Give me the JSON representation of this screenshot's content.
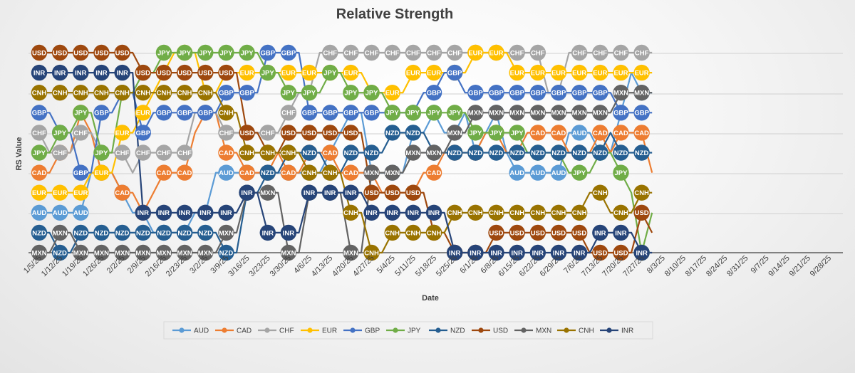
{
  "chart_data": {
    "type": "line",
    "title": "Relative Strength",
    "xlabel": "Date",
    "ylabel": "RS Value",
    "ylim": [
      1,
      11
    ],
    "grid": true,
    "legend_position": "bottom",
    "x_ticks": [
      "1/5/25",
      "1/12/25",
      "1/19/25",
      "1/26/25",
      "2/2/25",
      "2/9/25",
      "2/16/25",
      "2/23/25",
      "3/2/25",
      "3/9/25",
      "3/16/25",
      "3/23/25",
      "3/30/25",
      "4/6/25",
      "4/13/25",
      "4/20/25",
      "4/27/25",
      "5/4/25",
      "5/11/25",
      "5/18/25",
      "5/25/25",
      "6/1/25",
      "6/8/25",
      "6/15/25",
      "6/22/25",
      "6/29/25",
      "7/6/25",
      "7/13/25",
      "7/20/25",
      "7/27/25",
      "8/3/25",
      "8/10/25",
      "8/17/25",
      "8/24/25",
      "8/31/25",
      "9/7/25",
      "9/14/25",
      "9/21/25",
      "9/28/25"
    ],
    "points_per_week": 2,
    "series": [
      {
        "name": "AUD",
        "color": "#5b9bd5",
        "values": [
          3,
          3,
          3,
          3,
          3,
          5,
          5,
          5,
          4,
          3,
          3,
          2,
          2,
          2,
          2,
          3,
          3,
          5,
          5,
          5,
          5,
          5,
          5,
          5,
          5,
          5,
          5,
          5,
          6,
          7,
          8,
          8,
          5,
          5,
          5,
          5,
          7,
          7,
          8,
          7,
          7,
          8,
          6,
          7,
          8,
          6,
          5,
          5,
          5,
          5,
          5,
          7,
          7,
          7,
          6,
          6,
          8,
          10,
          9,
          9
        ]
      },
      {
        "name": "CAD",
        "color": "#ed7d31",
        "values": [
          5,
          5,
          6,
          6,
          8,
          7,
          5,
          5,
          4,
          4,
          3,
          4,
          5,
          5,
          5,
          7,
          8,
          8,
          6,
          6,
          5,
          5,
          5,
          6,
          5,
          5,
          6,
          6,
          6,
          5,
          5,
          5,
          5,
          4,
          4,
          4,
          4,
          5,
          5,
          6,
          6,
          6,
          6,
          7,
          7,
          6,
          6,
          7,
          7,
          7,
          7,
          6,
          6,
          6,
          7,
          6,
          7,
          7,
          7,
          5
        ]
      },
      {
        "name": "CHF",
        "color": "#a5a5a5",
        "values": [
          7,
          6,
          6,
          6,
          7,
          7,
          6,
          6,
          6,
          5,
          6,
          6,
          6,
          6,
          6,
          8,
          8,
          8,
          7,
          7,
          7,
          7,
          7,
          7,
          8,
          9,
          9,
          11,
          11,
          11,
          11,
          11,
          11,
          11,
          11,
          11,
          11,
          11,
          11,
          11,
          11,
          11,
          11,
          11,
          11,
          11,
          11,
          11,
          11,
          9,
          9,
          11,
          11,
          11,
          11,
          11,
          11,
          11,
          11,
          11
        ]
      },
      {
        "name": "EUR",
        "color": "#ffc000",
        "values": [
          4,
          4,
          4,
          4,
          4,
          5,
          5,
          5,
          7,
          7,
          8,
          9,
          10,
          11,
          11,
          11,
          9,
          9,
          10,
          10,
          10,
          10,
          10,
          10,
          10,
          10,
          10,
          10,
          10,
          10,
          10,
          10,
          9,
          9,
          9,
          9,
          10,
          10,
          10,
          10,
          10,
          10,
          11,
          11,
          11,
          11,
          10,
          10,
          10,
          10,
          10,
          10,
          10,
          10,
          10,
          10,
          10,
          10,
          10,
          10
        ]
      },
      {
        "name": "GBP",
        "color": "#4472c4",
        "values": [
          8,
          8,
          7,
          7,
          5,
          5,
          8,
          8,
          9,
          9,
          7,
          8,
          8,
          8,
          8,
          8,
          8,
          8,
          9,
          9,
          9,
          9,
          11,
          11,
          11,
          11,
          8,
          8,
          8,
          8,
          8,
          8,
          8,
          8,
          8,
          8,
          8,
          9,
          9,
          10,
          10,
          9,
          9,
          9,
          9,
          9,
          9,
          9,
          9,
          9,
          9,
          9,
          9,
          9,
          9,
          9,
          8,
          8,
          8,
          8
        ]
      },
      {
        "name": "JPY",
        "color": "#70ad47",
        "values": [
          6,
          6,
          7,
          7,
          8,
          8,
          6,
          6,
          9,
          9,
          10,
          10,
          11,
          11,
          11,
          11,
          11,
          11,
          11,
          11,
          11,
          11,
          10,
          10,
          9,
          9,
          9,
          9,
          10,
          10,
          9,
          9,
          9,
          9,
          8,
          8,
          8,
          8,
          8,
          8,
          8,
          8,
          7,
          7,
          7,
          7,
          7,
          6,
          6,
          6,
          6,
          5,
          5,
          5,
          6,
          6,
          5,
          4,
          1,
          3
        ]
      },
      {
        "name": "NZD",
        "color": "#255e91",
        "values": [
          2,
          2,
          1,
          1,
          2,
          2,
          2,
          2,
          2,
          2,
          2,
          2,
          2,
          2,
          2,
          2,
          2,
          2,
          1,
          1,
          4,
          4,
          5,
          5,
          6,
          6,
          6,
          6,
          5,
          5,
          6,
          6,
          6,
          6,
          7,
          7,
          7,
          7,
          6,
          6,
          6,
          6,
          6,
          6,
          6,
          6,
          6,
          6,
          6,
          6,
          6,
          6,
          6,
          6,
          6,
          7,
          6,
          6,
          6,
          6
        ]
      },
      {
        "name": "USD",
        "color": "#9e480e",
        "values": [
          11,
          11,
          11,
          11,
          11,
          11,
          11,
          11,
          11,
          11,
          10,
          10,
          10,
          10,
          10,
          10,
          10,
          10,
          10,
          10,
          7,
          7,
          6,
          6,
          7,
          7,
          7,
          7,
          7,
          7,
          7,
          7,
          4,
          4,
          4,
          4,
          4,
          4,
          2,
          2,
          1,
          1,
          1,
          1,
          2,
          2,
          2,
          2,
          2,
          2,
          2,
          2,
          2,
          1,
          1,
          1,
          1,
          1,
          3,
          2
        ]
      },
      {
        "name": "MXN",
        "color": "#636363",
        "values": [
          1,
          1,
          2,
          2,
          1,
          1,
          1,
          1,
          1,
          1,
          1,
          1,
          1,
          1,
          1,
          1,
          1,
          1,
          2,
          2,
          4,
          4,
          4,
          4,
          1,
          1,
          4,
          4,
          4,
          4,
          1,
          1,
          5,
          5,
          5,
          5,
          6,
          6,
          6,
          6,
          7,
          7,
          8,
          8,
          8,
          8,
          8,
          8,
          8,
          8,
          8,
          8,
          8,
          8,
          8,
          8,
          9,
          9,
          9,
          9
        ]
      },
      {
        "name": "CNH",
        "color": "#997300",
        "values": [
          9,
          9,
          9,
          9,
          9,
          9,
          9,
          9,
          9,
          9,
          9,
          9,
          9,
          9,
          9,
          9,
          9,
          9,
          8,
          8,
          6,
          6,
          6,
          6,
          6,
          6,
          5,
          5,
          5,
          5,
          3,
          3,
          1,
          1,
          2,
          2,
          2,
          2,
          2,
          2,
          3,
          3,
          3,
          3,
          3,
          3,
          3,
          3,
          3,
          3,
          3,
          3,
          3,
          4,
          4,
          3,
          3,
          3,
          4,
          4
        ]
      },
      {
        "name": "INR",
        "color": "#264478",
        "values": [
          10,
          10,
          10,
          10,
          10,
          10,
          10,
          10,
          10,
          10,
          3,
          3,
          3,
          3,
          3,
          3,
          3,
          3,
          3,
          3,
          4,
          4,
          2,
          2,
          2,
          2,
          4,
          4,
          4,
          4,
          4,
          4,
          3,
          3,
          3,
          3,
          3,
          3,
          3,
          3,
          1,
          1,
          1,
          1,
          1,
          1,
          1,
          1,
          1,
          1,
          1,
          1,
          1,
          1,
          2,
          2,
          2,
          2,
          1,
          1
        ]
      }
    ]
  }
}
